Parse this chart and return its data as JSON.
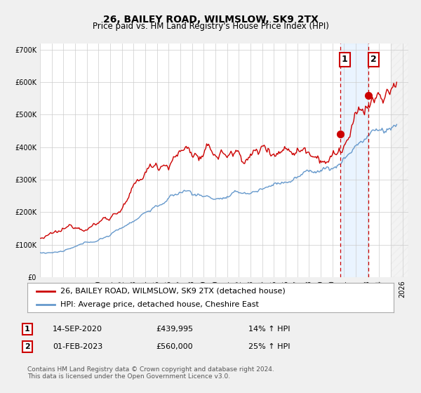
{
  "title": "26, BAILEY ROAD, WILMSLOW, SK9 2TX",
  "subtitle": "Price paid vs. HM Land Registry's House Price Index (HPI)",
  "ylim": [
    0,
    720000
  ],
  "xlim_start": 1995.0,
  "xlim_end": 2026.5,
  "yticks": [
    0,
    100000,
    200000,
    300000,
    400000,
    500000,
    600000,
    700000
  ],
  "ytick_labels": [
    "£0",
    "£100K",
    "£200K",
    "£300K",
    "£400K",
    "£500K",
    "£600K",
    "£700K"
  ],
  "xticks": [
    1995,
    1996,
    1997,
    1998,
    1999,
    2000,
    2001,
    2002,
    2003,
    2004,
    2005,
    2006,
    2007,
    2008,
    2009,
    2010,
    2011,
    2012,
    2013,
    2014,
    2015,
    2016,
    2017,
    2018,
    2019,
    2020,
    2021,
    2022,
    2023,
    2024,
    2025,
    2026
  ],
  "grid_color": "#cccccc",
  "bg_color": "#f0f0f0",
  "plot_bg_color": "#ffffff",
  "red_line_color": "#cc0000",
  "blue_line_color": "#6699cc",
  "blue_fill_color": "#ddeeff",
  "marker1_date": 2020.71,
  "marker1_value": 439995,
  "marker2_date": 2023.08,
  "marker2_value": 560000,
  "vline1_x": 2020.71,
  "vline2_x": 2023.08,
  "vline_color": "#cc0000",
  "shade_start": 2020.71,
  "shade_end": 2023.08,
  "hatch_start": 2025.0,
  "legend_label1": "26, BAILEY ROAD, WILMSLOW, SK9 2TX (detached house)",
  "legend_label2": "HPI: Average price, detached house, Cheshire East",
  "annotation1_date": "14-SEP-2020",
  "annotation1_price": "£439,995",
  "annotation1_hpi": "14% ↑ HPI",
  "annotation2_date": "01-FEB-2023",
  "annotation2_price": "£560,000",
  "annotation2_hpi": "25% ↑ HPI",
  "footnote": "Contains HM Land Registry data © Crown copyright and database right 2024.\nThis data is licensed under the Open Government Licence v3.0.",
  "title_fontsize": 10,
  "subtitle_fontsize": 8.5,
  "tick_fontsize": 7,
  "legend_fontsize": 8,
  "annotation_fontsize": 8,
  "footnote_fontsize": 6.5
}
